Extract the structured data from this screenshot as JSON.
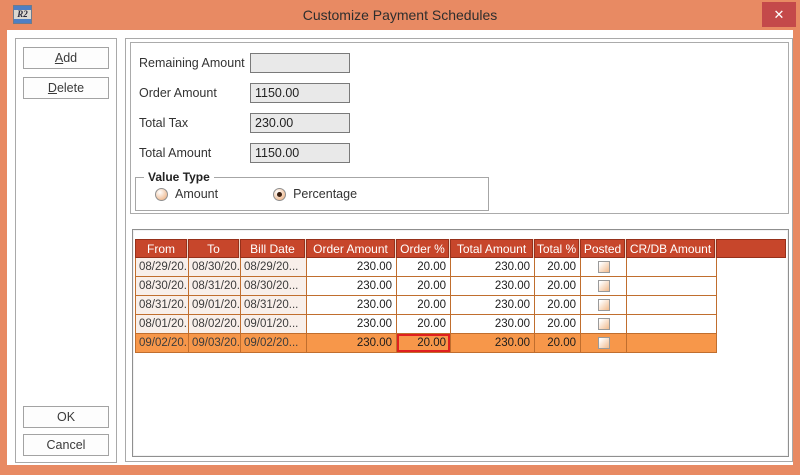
{
  "window": {
    "title": "Customize Payment Schedules",
    "app_icon_text": "R2",
    "close_glyph": "✕"
  },
  "side_panel": {
    "add_label": "Add",
    "delete_label": "Delete",
    "ok_label": "OK",
    "cancel_label": "Cancel"
  },
  "form": {
    "fields": [
      {
        "label": "Remaining Amount",
        "value": ""
      },
      {
        "label": "Order Amount",
        "value": "1150.00"
      },
      {
        "label": "Total Tax",
        "value": "230.00"
      },
      {
        "label": "Total Amount",
        "value": "1150.00"
      }
    ],
    "value_type": {
      "legend": "Value Type",
      "options": [
        {
          "label": "Amount",
          "selected": false
        },
        {
          "label": "Percentage",
          "selected": true
        }
      ]
    }
  },
  "table": {
    "columns": [
      "From",
      "To",
      "Bill Date",
      "Order Amount",
      "Order %",
      "Total Amount",
      "Total %",
      "Posted",
      "CR/DB Amount"
    ],
    "rows": [
      {
        "from": "08/29/20...",
        "to": "08/30/20...",
        "bill_date": "08/29/20...",
        "order_amount": "230.00",
        "order_pct": "20.00",
        "total_amount": "230.00",
        "total_pct": "20.00",
        "posted": false,
        "crdb_amount": ""
      },
      {
        "from": "08/30/20...",
        "to": "08/31/20...",
        "bill_date": "08/30/20...",
        "order_amount": "230.00",
        "order_pct": "20.00",
        "total_amount": "230.00",
        "total_pct": "20.00",
        "posted": false,
        "crdb_amount": ""
      },
      {
        "from": "08/31/20...",
        "to": "09/01/20...",
        "bill_date": "08/31/20...",
        "order_amount": "230.00",
        "order_pct": "20.00",
        "total_amount": "230.00",
        "total_pct": "20.00",
        "posted": false,
        "crdb_amount": ""
      },
      {
        "from": "08/01/20...",
        "to": "08/02/20...",
        "bill_date": "09/01/20...",
        "order_amount": "230.00",
        "order_pct": "20.00",
        "total_amount": "230.00",
        "total_pct": "20.00",
        "posted": false,
        "crdb_amount": ""
      },
      {
        "from": "09/02/20...",
        "to": "09/03/20...",
        "bill_date": "09/02/20...",
        "order_amount": "230.00",
        "order_pct": "20.00",
        "total_amount": "230.00",
        "total_pct": "20.00",
        "posted": false,
        "crdb_amount": ""
      }
    ],
    "selected_row_index": 4,
    "selected_cell_key": "order_pct"
  },
  "colors": {
    "frame_orange": "#E88A63",
    "close_red": "#C4494A",
    "header_red": "#C7462B",
    "grid_line_orange": "#C06E2E",
    "fixed_column_bg": "#F8EFEA",
    "selected_row_orange": "#F7974A",
    "selected_cell_border": "#E01F1F"
  }
}
